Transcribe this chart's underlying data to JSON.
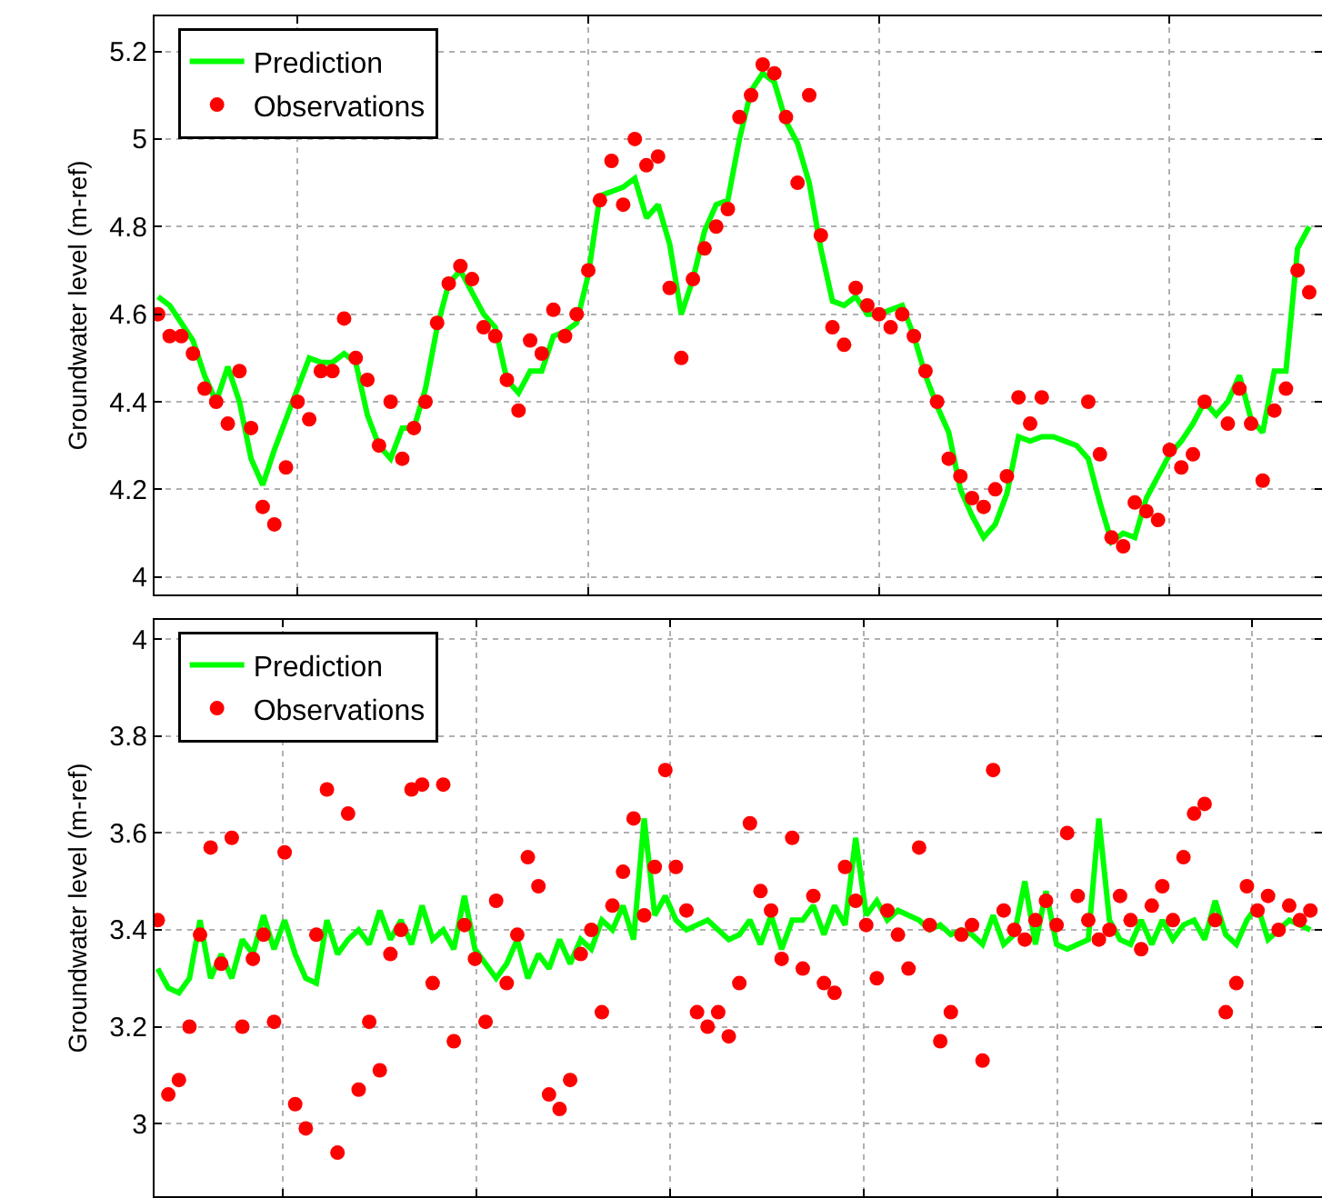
{
  "chart_data": [
    {
      "type": "line",
      "ylabel": "Groundwater level (m-ref)",
      "ylim": [
        3.96,
        5.28
      ],
      "yticks": [
        4,
        4.2,
        4.4,
        4.6,
        4.8,
        5,
        5.2
      ],
      "grid": true,
      "legend": "top left",
      "tick_labels": "y",
      "categories": [
        null,
        null,
        null,
        null,
        null,
        null,
        null,
        null,
        null,
        null,
        null,
        null,
        null,
        null,
        null,
        null,
        null,
        null,
        null,
        null,
        null,
        null,
        null,
        null,
        null,
        null,
        null,
        null,
        null,
        null,
        null,
        null,
        null,
        null,
        null,
        null,
        null,
        null,
        null,
        null,
        null,
        null,
        null,
        null,
        null,
        null,
        null,
        null,
        null,
        null,
        null,
        null,
        null,
        null,
        null,
        null,
        null,
        null,
        null,
        null,
        null,
        null,
        null,
        null,
        null,
        null,
        null,
        null,
        null,
        null,
        null,
        null,
        null,
        null,
        null,
        null,
        null,
        null,
        null,
        null,
        null,
        null,
        null,
        null,
        null,
        null,
        null,
        null,
        null,
        null,
        null,
        null,
        null,
        null,
        null,
        null,
        null,
        null,
        null,
        null
      ],
      "series": [
        {
          "name": "Prediction",
          "type": "line",
          "color": "#00ff00",
          "marker": "none",
          "values": [
            4.64,
            4.62,
            4.58,
            4.54,
            4.46,
            4.4,
            4.48,
            4.4,
            4.27,
            4.21,
            4.29,
            4.36,
            4.43,
            4.5,
            4.49,
            4.49,
            4.51,
            4.49,
            4.37,
            4.3,
            4.27,
            4.34,
            4.34,
            4.43,
            4.57,
            4.67,
            4.7,
            4.65,
            4.6,
            4.57,
            4.45,
            4.42,
            4.47,
            4.47,
            4.55,
            4.56,
            4.58,
            4.69,
            4.87,
            4.88,
            4.89,
            4.91,
            4.82,
            4.85,
            4.76,
            4.6,
            4.68,
            4.79,
            4.85,
            4.86,
            5.0,
            5.11,
            5.15,
            5.13,
            5.04,
            4.99,
            4.9,
            4.75,
            4.63,
            4.62,
            4.64,
            4.6,
            4.6,
            4.61,
            4.62,
            4.55,
            4.46,
            4.39,
            4.33,
            4.2,
            4.14,
            4.09,
            4.12,
            4.19,
            4.32,
            4.31,
            4.32,
            4.32,
            4.31,
            4.3,
            4.27,
            4.17,
            4.08,
            4.1,
            4.09,
            4.18,
            4.23,
            4.28,
            4.31,
            4.35,
            4.4,
            4.37,
            4.4,
            4.46,
            4.36,
            4.33,
            4.47,
            4.47,
            4.75,
            4.8
          ]
        },
        {
          "name": "Observations",
          "type": "scatter",
          "color": "#ff0000",
          "marker": "circle",
          "values": [
            4.6,
            4.55,
            4.55,
            4.51,
            4.43,
            4.4,
            4.35,
            4.47,
            4.34,
            4.16,
            4.12,
            4.25,
            4.4,
            4.36,
            4.47,
            4.47,
            4.59,
            4.5,
            4.45,
            4.3,
            4.4,
            4.27,
            4.34,
            4.4,
            4.58,
            4.67,
            4.71,
            4.68,
            4.57,
            4.55,
            4.45,
            4.38,
            4.54,
            4.51,
            4.61,
            4.55,
            4.6,
            4.7,
            4.86,
            4.95,
            4.85,
            5.0,
            4.94,
            4.96,
            4.66,
            4.5,
            4.68,
            4.75,
            4.8,
            4.84,
            5.05,
            5.1,
            5.17,
            5.15,
            5.05,
            4.9,
            5.1,
            4.78,
            4.57,
            4.53,
            4.66,
            4.62,
            4.6,
            4.57,
            4.6,
            4.55,
            4.47,
            4.4,
            4.27,
            4.23,
            4.18,
            4.16,
            4.2,
            4.23,
            4.41,
            4.35,
            4.41,
            null,
            null,
            null,
            4.4,
            4.28,
            4.09,
            4.07,
            4.17,
            4.15,
            4.13,
            4.29,
            4.25,
            4.28,
            4.4,
            null,
            4.35,
            4.43,
            4.35,
            4.22,
            4.38,
            4.43,
            4.7,
            4.65
          ]
        }
      ]
    },
    {
      "type": "line",
      "ylabel": "Groundwater level (m-ref)",
      "ylim": [
        2.85,
        4.04
      ],
      "yticks": [
        3,
        3.2,
        3.4,
        3.6,
        3.8,
        4
      ],
      "grid": true,
      "legend": "top left",
      "tick_labels": "y",
      "categories": [
        null,
        null,
        null,
        null,
        null,
        null,
        null,
        null,
        null,
        null,
        null,
        null,
        null,
        null,
        null,
        null,
        null,
        null,
        null,
        null,
        null,
        null,
        null,
        null,
        null,
        null,
        null,
        null,
        null,
        null,
        null,
        null,
        null,
        null,
        null,
        null,
        null,
        null,
        null,
        null,
        null,
        null,
        null,
        null,
        null,
        null,
        null,
        null,
        null,
        null,
        null,
        null,
        null,
        null,
        null,
        null,
        null,
        null,
        null,
        null,
        null,
        null,
        null,
        null,
        null,
        null,
        null,
        null,
        null,
        null,
        null,
        null,
        null,
        null,
        null,
        null,
        null,
        null,
        null,
        null,
        null,
        null,
        null,
        null,
        null,
        null,
        null,
        null,
        null,
        null,
        null,
        null,
        null,
        null,
        null,
        null,
        null,
        null,
        null,
        null,
        null,
        null,
        null,
        null,
        null,
        null,
        null,
        null,
        null,
        null
      ],
      "series": [
        {
          "name": "Prediction",
          "type": "line",
          "color": "#00ff00",
          "marker": "none",
          "values": [
            3.32,
            3.28,
            3.27,
            3.3,
            3.42,
            3.3,
            3.35,
            3.3,
            3.38,
            3.35,
            3.43,
            3.36,
            3.42,
            3.35,
            3.3,
            3.29,
            3.42,
            3.35,
            3.38,
            3.4,
            3.37,
            3.44,
            3.38,
            3.42,
            3.37,
            3.45,
            3.38,
            3.4,
            3.36,
            3.47,
            3.36,
            3.33,
            3.3,
            3.33,
            3.38,
            3.3,
            3.35,
            3.32,
            3.38,
            3.33,
            3.38,
            3.36,
            3.42,
            3.4,
            3.45,
            3.38,
            3.63,
            3.43,
            3.47,
            3.42,
            3.4,
            3.41,
            3.42,
            3.4,
            3.38,
            3.39,
            3.42,
            3.37,
            3.43,
            3.36,
            3.42,
            3.42,
            3.45,
            3.39,
            3.45,
            3.41,
            3.59,
            3.43,
            3.46,
            3.42,
            3.44,
            3.43,
            3.42,
            3.4,
            3.41,
            3.39,
            3.4,
            3.39,
            3.37,
            3.43,
            3.37,
            3.39,
            3.5,
            3.37,
            3.48,
            3.37,
            3.36,
            3.37,
            3.38,
            3.63,
            3.42,
            3.38,
            3.37,
            3.42,
            3.37,
            3.42,
            3.38,
            3.41,
            3.42,
            3.38,
            3.46,
            3.39,
            3.37,
            3.42,
            3.45,
            3.38,
            3.4,
            3.42,
            3.41,
            3.4
          ]
        },
        {
          "name": "Observations",
          "type": "scatter",
          "color": "#ff0000",
          "marker": "circle",
          "values": [
            3.42,
            3.06,
            3.09,
            3.2,
            3.39,
            3.57,
            3.33,
            3.59,
            3.2,
            3.34,
            3.39,
            3.21,
            3.56,
            3.04,
            2.99,
            3.39,
            3.69,
            2.94,
            3.64,
            3.07,
            3.21,
            3.11,
            3.35,
            3.4,
            3.69,
            3.7,
            3.29,
            3.7,
            3.17,
            3.41,
            3.34,
            3.21,
            3.46,
            3.29,
            3.39,
            3.55,
            3.49,
            3.06,
            3.03,
            3.09,
            3.35,
            3.4,
            3.23,
            3.45,
            3.52,
            3.63,
            3.43,
            3.53,
            3.73,
            3.53,
            3.44,
            3.23,
            3.2,
            3.23,
            3.18,
            3.29,
            3.62,
            3.48,
            3.44,
            3.34,
            3.59,
            3.32,
            3.47,
            3.29,
            3.27,
            3.53,
            3.46,
            3.41,
            3.3,
            3.44,
            3.39,
            3.32,
            3.57,
            3.41,
            3.17,
            3.23,
            3.39,
            3.41,
            3.13,
            3.73,
            3.44,
            3.4,
            3.38,
            3.42,
            3.46,
            3.41,
            3.6,
            3.47,
            3.42,
            3.38,
            3.4,
            3.47,
            3.42,
            3.36,
            3.45,
            3.49,
            3.42,
            3.55,
            3.64,
            3.66,
            3.42,
            3.23,
            3.29,
            3.49,
            3.44,
            3.47,
            3.4,
            3.45,
            3.42,
            3.44
          ]
        }
      ]
    }
  ]
}
